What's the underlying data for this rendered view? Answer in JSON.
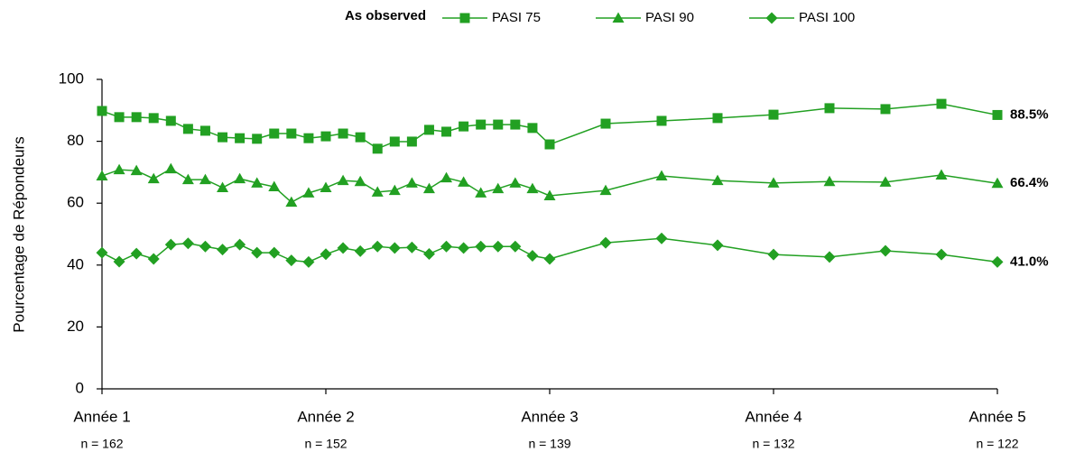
{
  "chart_data": {
    "type": "line",
    "legend_title": "As observed",
    "ylabel": "Pourcentage de Répondeurs",
    "x": [
      52,
      56,
      60,
      64,
      68,
      72,
      76,
      80,
      84,
      88,
      92,
      96,
      100,
      104,
      108,
      112,
      116,
      120,
      124,
      128,
      132,
      136,
      140,
      144,
      148,
      152,
      156,
      169,
      182,
      195,
      208,
      221,
      234,
      247,
      260
    ],
    "xlim": [
      52,
      260
    ],
    "xticks": [
      {
        "value": 52,
        "label": "Année 1"
      },
      {
        "value": 104,
        "label": "Année 2"
      },
      {
        "value": 156,
        "label": "Année 3"
      },
      {
        "value": 208,
        "label": "Année 4"
      },
      {
        "value": 260,
        "label": "Année 5"
      }
    ],
    "x_sublabels": [
      "n = 162",
      "n = 152",
      "n = 139",
      "n = 132",
      "n = 122"
    ],
    "ylim": [
      0,
      100
    ],
    "yticks": [
      0,
      20,
      40,
      60,
      80,
      100
    ],
    "grid": false,
    "series": [
      {
        "name": "PASI 75",
        "color": "#22a022",
        "marker": "square",
        "end_label": "88.5%",
        "values": [
          89.8,
          87.8,
          87.8,
          87.5,
          86.6,
          84,
          83.4,
          81.3,
          81,
          80.8,
          82.5,
          82.5,
          81,
          81.6,
          82.5,
          81.3,
          77.6,
          79.9,
          79.9,
          83.7,
          83.1,
          84.8,
          85.4,
          85.4,
          85.4,
          84.3,
          79,
          85.7,
          86.6,
          87.5,
          88.6,
          90.7,
          90.4,
          92.1,
          88.5
        ]
      },
      {
        "name": "PASI 90",
        "color": "#22a022",
        "marker": "triangle",
        "end_label": "66.4%",
        "values": [
          68.8,
          70.8,
          70.5,
          67.9,
          71.1,
          67.6,
          67.6,
          65,
          67.9,
          66.5,
          65.3,
          60.3,
          63.3,
          65,
          67.3,
          67,
          63.6,
          64.1,
          66.5,
          64.7,
          68.2,
          66.8,
          63.3,
          64.7,
          66.5,
          64.7,
          62.4,
          64.1,
          68.8,
          67.3,
          66.5,
          67,
          66.8,
          69.1,
          66.4
        ]
      },
      {
        "name": "PASI 100",
        "color": "#22a022",
        "marker": "diamond",
        "end_label": "41.0%",
        "values": [
          44,
          41.1,
          43.7,
          42,
          46.6,
          47,
          46,
          45,
          46.6,
          44,
          44,
          41.5,
          41,
          43.5,
          45.5,
          44.5,
          46,
          45.5,
          45.7,
          43.6,
          46,
          45.5,
          46,
          46,
          46,
          43,
          42,
          47.2,
          48.6,
          46.4,
          43.4,
          42.6,
          44.6,
          43.4,
          41
        ]
      }
    ]
  }
}
